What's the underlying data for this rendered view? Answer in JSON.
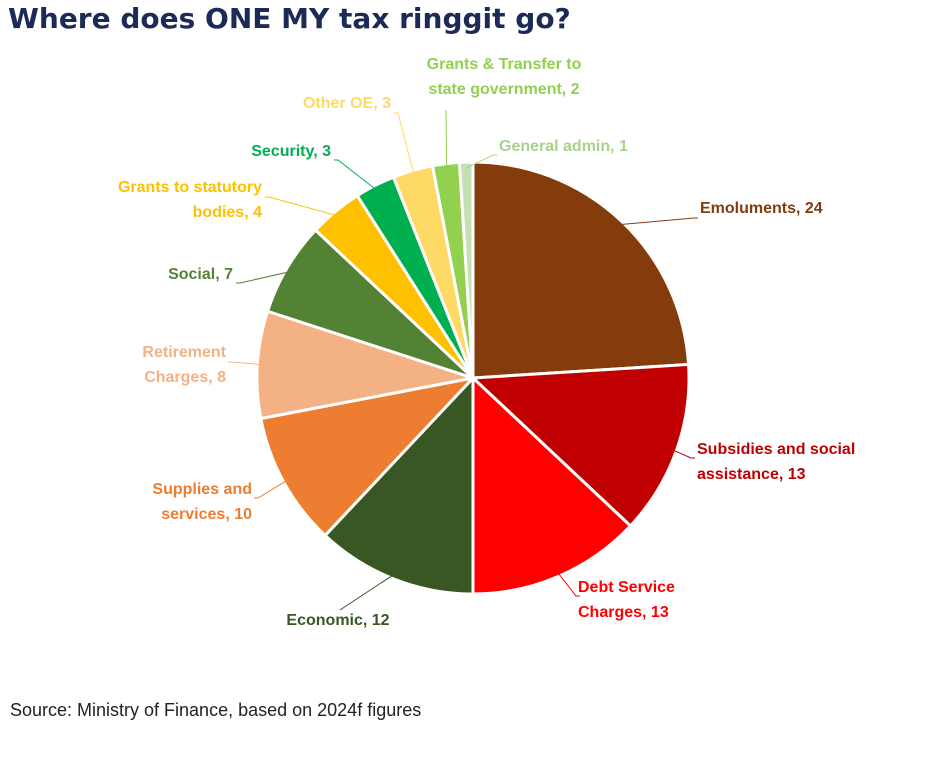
{
  "title": "Where does ONE MY tax ringgit go?",
  "source": "Source: Ministry of Finance, based on 2024f figures",
  "chart_data": {
    "type": "pie",
    "title": "Where does ONE MY tax ringgit go?",
    "start": "12 o'clock, clockwise",
    "slices": [
      {
        "label": "Emoluments",
        "value": 24,
        "color": "#843c0c",
        "text_lines": [
          "Emoluments,  24"
        ]
      },
      {
        "label": "Subsidies and social assistance",
        "value": 13,
        "color": "#c00000",
        "text_lines": [
          "Subsidies and social",
          "assistance,  13"
        ]
      },
      {
        "label": "Debt Service Charges",
        "value": 13,
        "color": "#ff0000",
        "text_lines": [
          "Debt Service",
          "Charges,  13"
        ]
      },
      {
        "label": "Economic",
        "value": 12,
        "color": "#385723",
        "text_lines": [
          "Economic,  12"
        ]
      },
      {
        "label": "Supplies and services",
        "value": 10,
        "color": "#ed7d31",
        "text_lines": [
          "Supplies and",
          "services,  10"
        ]
      },
      {
        "label": "Retirement Charges",
        "value": 8,
        "color": "#f4b183",
        "text_lines": [
          "Retirement",
          "Charges,  8"
        ]
      },
      {
        "label": "Social",
        "value": 7,
        "color": "#548235",
        "text_lines": [
          "Social,  7"
        ]
      },
      {
        "label": "Grants to statutory bodies",
        "value": 4,
        "color": "#ffc000",
        "text_lines": [
          "Grants to statutory",
          "bodies,  4"
        ]
      },
      {
        "label": "Security",
        "value": 3,
        "color": "#00b050",
        "text_lines": [
          "Security,  3"
        ]
      },
      {
        "label": "Other OE",
        "value": 3,
        "color": "#ffd966",
        "text_lines": [
          "Other OE,  3"
        ]
      },
      {
        "label": "Grants & Transfer to state government",
        "value": 2,
        "color": "#92d050",
        "text_lines": [
          "Grants & Transfer to",
          "state government,  2"
        ]
      },
      {
        "label": "General admin",
        "value": 1,
        "color": "#c5e0b4",
        "text_lines": [
          "General admin,  1"
        ]
      }
    ]
  }
}
